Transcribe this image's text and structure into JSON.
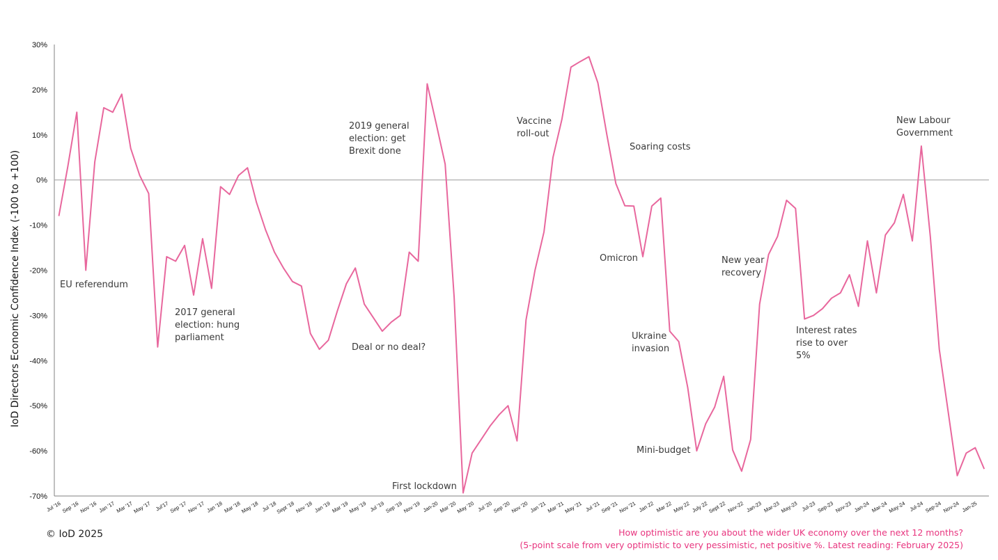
{
  "chart_data": {
    "type": "line",
    "ylabel": "IoD Directors Economic Confidence Index (-100 to +100)",
    "xlabel": "",
    "ylim": [
      -70,
      30
    ],
    "y_ticks": [
      "30%",
      "20%",
      "10%",
      "0%",
      "-10%",
      "-20%",
      "-30%",
      "-40%",
      "-50%",
      "-60%",
      "-70%"
    ],
    "x_tick_labels": [
      "Jul '16",
      "Sep '16",
      "Nov '16",
      "Jan '17",
      "Mar '17",
      "May '17",
      "Jul'17",
      "Sep '17",
      "Nov '17",
      "Jan '18",
      "Mar '18",
      "May '18",
      "Jul '18",
      "Sept '18",
      "Nov '18",
      "Jan '19",
      "Mar '19",
      "May '19",
      "Jul '19",
      "Sep '19",
      "Nov '19",
      "Jan-20",
      "Mar '20",
      "May '20",
      "Jul '20",
      "Sep '20",
      "Nov '20",
      "Jan '21",
      "Mar '21",
      "May '21",
      "Jul '21",
      "Sep '21",
      "Nov '21",
      "Jan 22",
      "Mar 22",
      "May 22",
      "July 22",
      "Sept 22",
      "Nov-22",
      "Jan-23",
      "Mar-23",
      "May-23",
      "Jul-23",
      "Sep-23",
      "Nov-23",
      "Jan-24",
      "Mar-24",
      "May-24",
      "Jul-24",
      "Sep-24",
      "Nov-24",
      "Jan-25"
    ],
    "grid": false,
    "series": [
      {
        "color": "#e8679d",
        "x_start": "Jul 2016",
        "x_end": "Feb 2025",
        "values": [
          -8,
          3,
          15,
          -20,
          4,
          16,
          15,
          19,
          7,
          1,
          -3,
          -37,
          -17,
          -18,
          -14.5,
          -25.5,
          -13,
          -24,
          -1.5,
          -3.2,
          1,
          2.7,
          -5,
          -11,
          -16,
          -19.5,
          -22.5,
          -23.5,
          -34,
          -37.5,
          -35.5,
          -29,
          -23,
          -19.5,
          -27.5,
          -30.5,
          -33.5,
          -31.5,
          -30,
          -16,
          -18,
          21.3,
          12.5,
          3.5,
          -26,
          -69.3,
          -60.5,
          -57.5,
          -54.5,
          -52,
          -50,
          -57.8,
          -31,
          -20,
          -11.5,
          5,
          13.5,
          25,
          26.2,
          27.3,
          21.5,
          10,
          -0.8,
          -5.7,
          -5.8,
          -17,
          -5.8,
          -4,
          -33.5,
          -35.8,
          -46,
          -60,
          -54,
          -50.3,
          -43.5,
          -59.8,
          -64.5,
          -57.5,
          -27.5,
          -16.5,
          -12.5,
          -4.5,
          -6.3,
          -30.8,
          -30,
          -28.5,
          -26.2,
          -25,
          -21,
          -28,
          -13.5,
          -25,
          -12.2,
          -9.5,
          -3.2,
          -13.5,
          7.5,
          -12.5,
          -37.5,
          -51.5,
          -65.5,
          -60.5,
          -59.3,
          -64
        ]
      }
    ],
    "annotations": [
      {
        "lines": [
          "EU referendum"
        ]
      },
      {
        "lines": [
          "2017 general",
          "election: hung",
          "parliament"
        ]
      },
      {
        "lines": [
          "Deal or no deal?"
        ]
      },
      {
        "lines": [
          "2019 general",
          "election: get",
          "Brexit done"
        ]
      },
      {
        "lines": [
          "First lockdown"
        ]
      },
      {
        "lines": [
          "Vaccine",
          "roll-out"
        ]
      },
      {
        "lines": [
          "Soaring costs"
        ]
      },
      {
        "lines": [
          "Omicron"
        ]
      },
      {
        "lines": [
          "Ukraine",
          "invasion"
        ]
      },
      {
        "lines": [
          "Mini-budget"
        ]
      },
      {
        "lines": [
          "New year",
          "recovery"
        ]
      },
      {
        "lines": [
          "Interest rates",
          "rise to over",
          "5%"
        ]
      },
      {
        "lines": [
          "New Labour",
          "Government"
        ]
      }
    ],
    "colors": {
      "line": "#e8679d",
      "zero_line": "#a6a6a6",
      "axis": "#808080"
    }
  },
  "copyright": "© IoD 2025",
  "footnote": {
    "question": "How optimistic are you about the wider UK economy over the next 12 months?",
    "scale": "(5-point scale from very optimistic to very pessimistic, net positive %. Latest reading: February 2025)",
    "color": "#e8357f"
  }
}
